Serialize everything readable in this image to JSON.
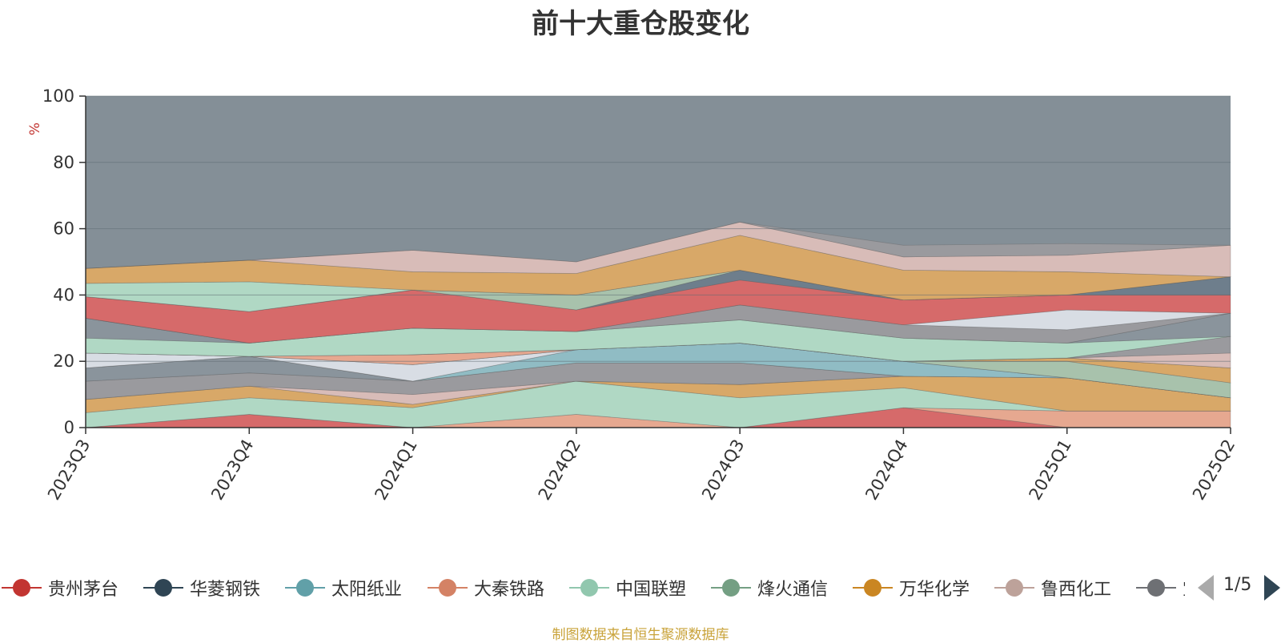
{
  "chart_data": {
    "type": "area",
    "title": "前十大重仓股变化",
    "ylabel": "%",
    "ylim": [
      0,
      100
    ],
    "yticks": [
      0,
      20,
      40,
      60,
      80,
      100
    ],
    "categories": [
      "2023Q3",
      "2023Q4",
      "2024Q1",
      "2024Q2",
      "2024Q3",
      "2024Q4",
      "2025Q1",
      "2025Q2"
    ],
    "grid": true,
    "legend_position": "bottom",
    "series_order": "drawn bottom to top; remainder of each column to 100 is the gray background band",
    "series": [
      {
        "values": [
          0,
          4,
          0,
          0,
          0,
          6,
          0,
          0
        ],
        "color": "#d66a6a"
      },
      {
        "values": [
          0,
          0,
          0,
          4,
          0,
          0,
          5,
          5
        ],
        "color": "#e6a890"
      },
      {
        "values": [
          4.5,
          5,
          6,
          10,
          9,
          6,
          0,
          0
        ],
        "color": "#b0d8c4"
      },
      {
        "values": [
          4,
          3.5,
          1,
          0,
          4,
          3.5,
          10,
          4
        ],
        "color": "#d8a868"
      },
      {
        "values": [
          0,
          0,
          3,
          0,
          0,
          0,
          0,
          0
        ],
        "color": "#d8bcb8"
      },
      {
        "values": [
          5.5,
          4,
          4,
          5.5,
          6.5,
          0,
          0,
          0
        ],
        "color": "#9a9a9e"
      },
      {
        "values": [
          4,
          5,
          0,
          0,
          0,
          0,
          0,
          0
        ],
        "color": "#8a949c"
      },
      {
        "values": [
          0,
          0,
          0,
          4,
          6,
          4.5,
          0,
          0
        ],
        "color": "#90bcc4"
      },
      {
        "values": [
          4.5,
          0,
          5,
          0,
          0,
          0,
          0,
          0
        ],
        "color": "#d8dde4"
      },
      {
        "values": [
          0,
          0,
          0,
          0,
          0,
          0,
          5,
          4.5
        ],
        "color": "#a8c2ac"
      },
      {
        "values": [
          0,
          0,
          0,
          0,
          0,
          0,
          1,
          4.5
        ],
        "color": "#d8a868"
      },
      {
        "values": [
          0,
          0,
          3,
          0,
          0,
          0,
          0,
          0
        ],
        "color": "#e6a890"
      },
      {
        "values": [
          0,
          0,
          0,
          0,
          0,
          0,
          0,
          4.5
        ],
        "color": "#d8bcb8"
      },
      {
        "values": [
          0,
          0,
          0,
          0,
          0,
          0,
          0,
          5
        ],
        "color": "#9a9a9e"
      },
      {
        "values": [
          4.5,
          4,
          8,
          5.5,
          7,
          7,
          4.5,
          0
        ],
        "color": "#b0d8c4"
      },
      {
        "values": [
          6,
          0,
          0,
          0,
          0,
          0,
          0,
          7
        ],
        "color": "#8a949c"
      },
      {
        "values": [
          0,
          0,
          0,
          0,
          4.5,
          4,
          4,
          0
        ],
        "color": "#9a9a9e"
      },
      {
        "values": [
          0,
          0,
          0,
          0,
          0,
          0,
          6,
          0
        ],
        "color": "#d8dde4"
      },
      {
        "values": [
          6.5,
          9.5,
          11.5,
          6.5,
          7.5,
          7.5,
          4.5,
          5.5
        ],
        "color": "#d66a6a"
      },
      {
        "values": [
          0,
          0,
          0,
          0,
          3,
          0,
          0,
          5.5
        ],
        "color": "#6e7e8c"
      },
      {
        "values": [
          0,
          0,
          0,
          4.5,
          0,
          0,
          0,
          0
        ],
        "color": "#a8c2ac"
      },
      {
        "values": [
          4,
          9,
          0,
          0,
          0,
          0,
          0,
          0
        ],
        "color": "#b0d8c4"
      },
      {
        "values": [
          4.5,
          6.5,
          5.5,
          6.5,
          10.5,
          9,
          7,
          0
        ],
        "color": "#d8a868"
      },
      {
        "values": [
          0,
          0,
          6.5,
          3.5,
          4,
          4,
          5,
          9.5
        ],
        "color": "#d8bcb8"
      },
      {
        "values": [
          0,
          0,
          0,
          0,
          0,
          3.5,
          3.5,
          0
        ],
        "color": "#9a9a9e"
      }
    ]
  },
  "chart_colors": {
    "background_band": "#848f97",
    "axis": "#333333",
    "grid": "#5f6b73",
    "ylabel": "#c23531"
  },
  "legend": {
    "items": [
      {
        "label": "贵州茅台",
        "color": "#c23531"
      },
      {
        "label": "华菱钢铁",
        "color": "#2f4554"
      },
      {
        "label": "太阳纸业",
        "color": "#61a0a8"
      },
      {
        "label": "大秦铁路",
        "color": "#d48265"
      },
      {
        "label": "中国联塑",
        "color": "#91c7ae"
      },
      {
        "label": "烽火通信",
        "color": "#749f83"
      },
      {
        "label": "万华化学",
        "color": "#ca8622"
      },
      {
        "label": "鲁西化工",
        "color": "#bda29a"
      },
      {
        "label": "宝",
        "color": "#6e7074"
      }
    ],
    "page": "1/5",
    "prev_icon": "triangle-left-icon",
    "next_icon": "triangle-right-icon"
  },
  "footer": {
    "source_note": "制图数据来自恒生聚源数据库"
  }
}
